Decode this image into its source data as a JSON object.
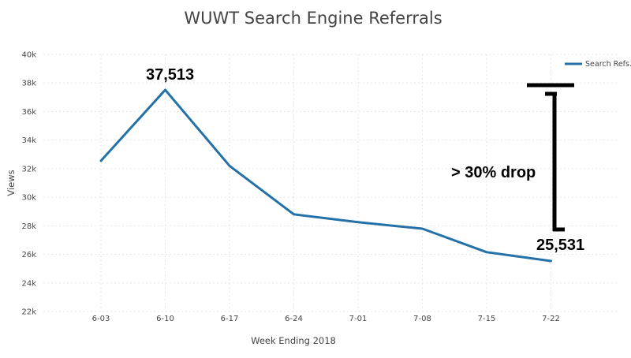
{
  "chart_data": {
    "type": "line",
    "title": "WUWT Search Engine Referrals",
    "xlabel": "Week Ending 2018",
    "ylabel": "Views",
    "categories": [
      "6-03",
      "6-10",
      "6-17",
      "6-24",
      "7-01",
      "7-08",
      "7-15",
      "7-22"
    ],
    "series": [
      {
        "name": "Search Refs.",
        "color": "#2471a8",
        "values": [
          32550,
          37513,
          32200,
          28800,
          28250,
          27800,
          26150,
          25531
        ]
      }
    ],
    "ylim": [
      22000,
      40000
    ],
    "yticks": [
      22000,
      24000,
      26000,
      28000,
      30000,
      32000,
      34000,
      36000,
      38000,
      40000
    ],
    "ytick_labels": [
      "22k",
      "24k",
      "26k",
      "28k",
      "30k",
      "32k",
      "34k",
      "36k",
      "38k",
      "40k"
    ],
    "grid": true,
    "legend_position": "top-right",
    "annotations": {
      "peak_label": "37,513",
      "end_label": "25,531",
      "drop_label": "> 30% drop"
    }
  }
}
